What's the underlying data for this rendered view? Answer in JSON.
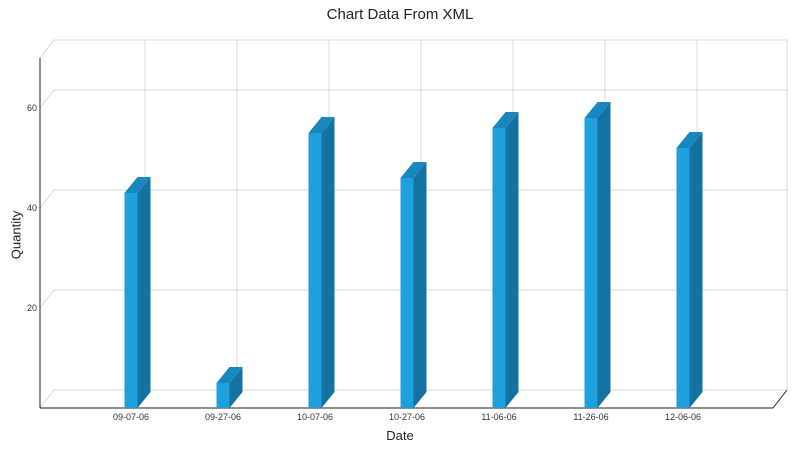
{
  "chart_data": {
    "type": "bar",
    "title": "Chart Data From XML",
    "xlabel": "Date",
    "ylabel": "Quantity",
    "categories": [
      "09-07-06",
      "09-27-06",
      "10-07-06",
      "10-27-06",
      "11-06-06",
      "11-26-06",
      "12-06-06"
    ],
    "values": [
      43,
      5,
      55,
      46,
      56,
      58,
      52
    ],
    "ylim": [
      0,
      70
    ],
    "yticks": [
      20,
      40,
      60
    ],
    "grid": true,
    "legend": "none",
    "style": "3d"
  },
  "colors": {
    "bar_front": "#1e9fde",
    "bar_side": "#1372a1",
    "bar_top": "#1887c0",
    "grid": "#d9d9d9",
    "axis": "#222222"
  }
}
